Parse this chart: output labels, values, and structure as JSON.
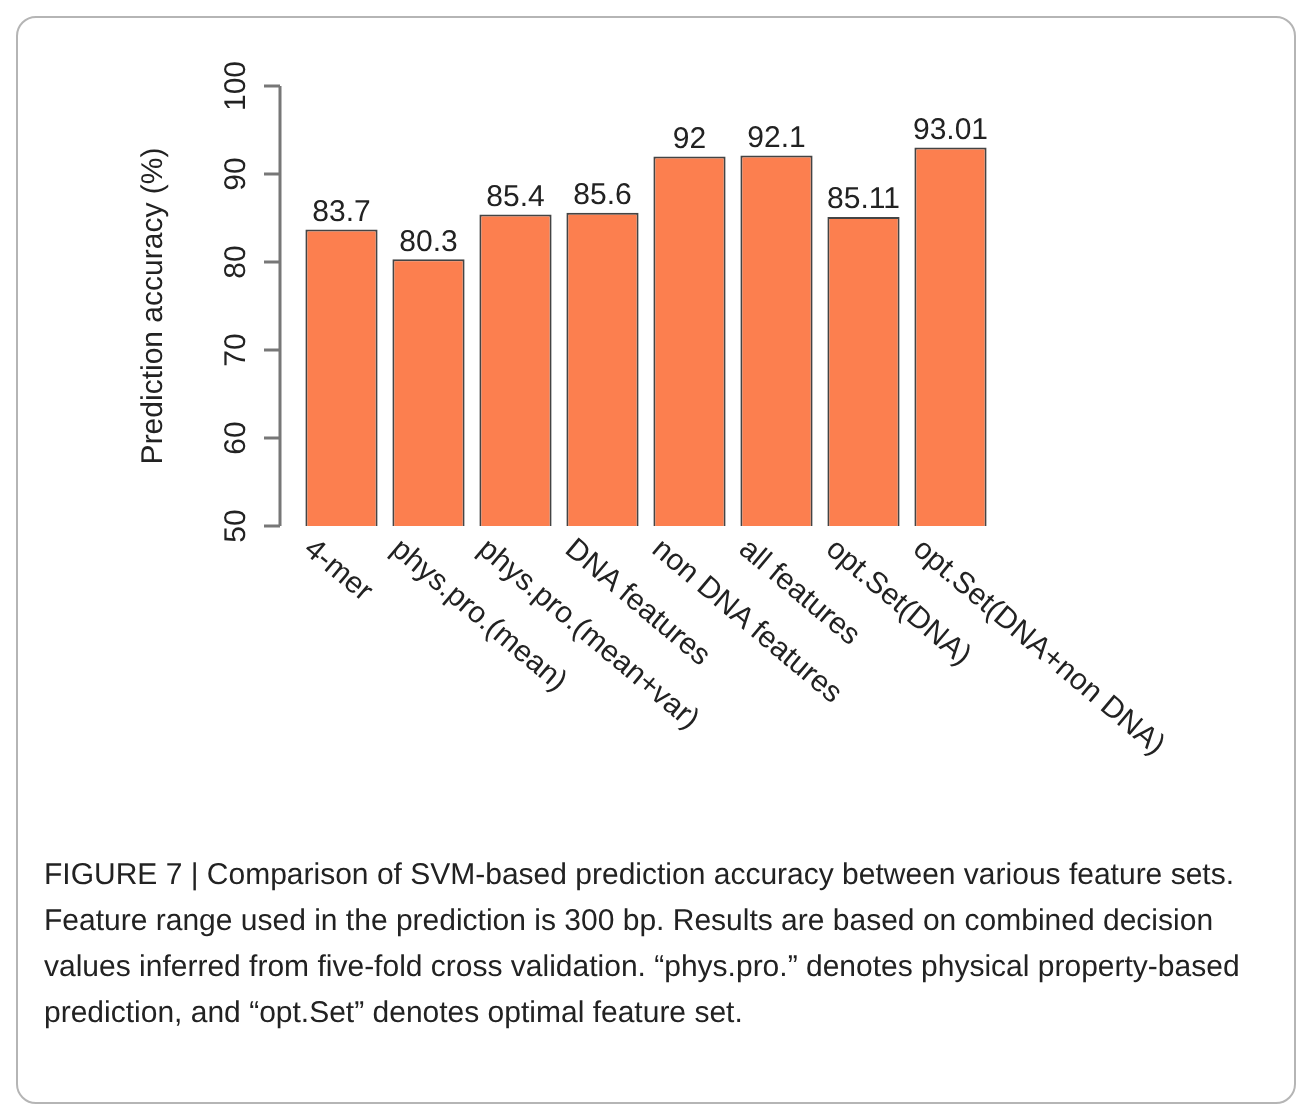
{
  "chart_data": {
    "type": "bar",
    "ylabel": "Prediction accuracy (%)",
    "categories": [
      "4-mer",
      "phys.pro.(mean)",
      "phys.pro.(mean+var)",
      "DNA features",
      "non DNA features",
      "all features",
      "opt.Set(DNA)",
      "opt.Set(DNA+non DNA)"
    ],
    "values": [
      83.7,
      80.3,
      85.4,
      85.6,
      92,
      92.1,
      85.11,
      93.01
    ],
    "color": "#fc7f4f",
    "ylim": [
      50,
      100
    ],
    "yticks": [
      50,
      60,
      70,
      80,
      90,
      100
    ],
    "legend": false,
    "data_labels": true,
    "annotations": [
      "FIGURE 7 | Comparison of SVM-based prediction accuracy between various feature sets. Feature range used in the prediction is 300 bp. Results are based on combined decision values inferred from five-fold cross validation. “phys.pro.” denotes physical property-based prediction, and “opt.Set” denotes optimal feature set."
    ]
  }
}
